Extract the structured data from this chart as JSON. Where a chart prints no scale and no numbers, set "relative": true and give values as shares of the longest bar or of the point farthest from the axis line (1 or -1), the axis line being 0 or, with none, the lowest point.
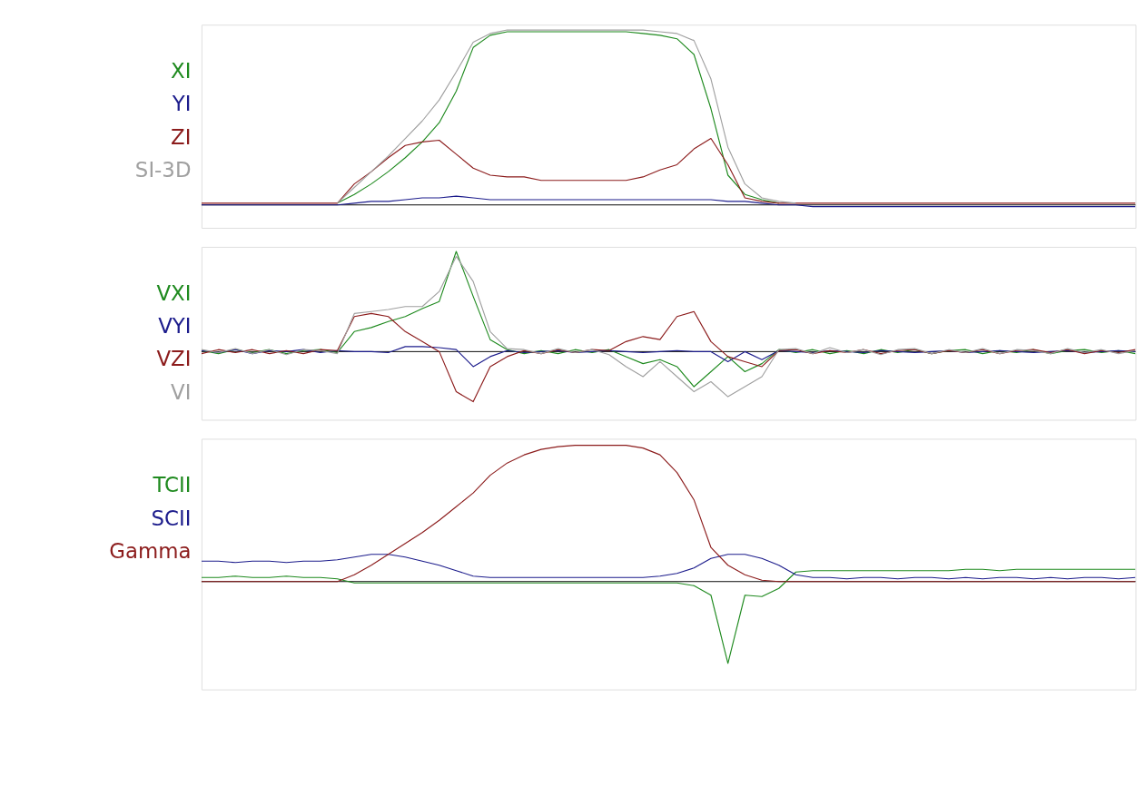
{
  "chart_data": [
    {
      "type": "line",
      "relative": true,
      "legend": "left",
      "grid": false,
      "tick_labels": false,
      "categories": [
        null,
        null,
        null,
        null,
        null,
        null,
        null,
        null,
        null,
        null,
        null,
        null,
        null,
        null,
        null,
        null,
        null,
        null,
        null,
        null,
        null,
        null,
        null,
        null,
        null,
        null,
        null,
        null,
        null,
        null,
        null,
        null,
        null,
        null,
        null,
        null,
        null,
        null,
        null,
        null,
        null,
        null,
        null,
        null,
        null,
        null,
        null,
        null,
        null,
        null,
        null,
        null,
        null,
        null,
        null,
        null
      ],
      "series": [
        {
          "name": "XI",
          "color": "#1f8a1f",
          "values": [
            null,
            null,
            null,
            null,
            null,
            null,
            null,
            null,
            0.01,
            0.06,
            0.12,
            0.19,
            0.27,
            0.36,
            0.47,
            0.65,
            0.9,
            0.97,
            0.99,
            0.99,
            0.99,
            0.99,
            0.99,
            0.99,
            0.99,
            0.99,
            0.98,
            0.97,
            0.95,
            0.86,
            0.55,
            0.17,
            0.06,
            0.03,
            0.01,
            null,
            null,
            null,
            null,
            null,
            null,
            null,
            null,
            null,
            null,
            null,
            null,
            null,
            null,
            null,
            null,
            null,
            null,
            null,
            null,
            null
          ]
        },
        {
          "name": "YI",
          "color": "#1c1c8c",
          "values": [
            0,
            0,
            0,
            0,
            0,
            0,
            0,
            0,
            0,
            0.01,
            0.02,
            0.02,
            0.03,
            0.04,
            0.04,
            0.05,
            0.04,
            0.03,
            0.03,
            0.03,
            0.03,
            0.03,
            0.03,
            0.03,
            0.03,
            0.03,
            0.03,
            0.03,
            0.03,
            0.03,
            0.03,
            0.02,
            0.02,
            0.01,
            0,
            0,
            -0.01,
            -0.01,
            -0.01,
            -0.01,
            -0.01,
            -0.01,
            -0.01,
            -0.01,
            -0.01,
            -0.01,
            -0.01,
            -0.01,
            -0.01,
            -0.01,
            -0.01,
            -0.01,
            -0.01,
            -0.01,
            -0.01,
            -0.01
          ]
        },
        {
          "name": "ZI",
          "color": "#8c1c1c",
          "values": [
            0.01,
            0.01,
            0.01,
            0.01,
            0.01,
            0.01,
            0.01,
            0.01,
            0.01,
            0.12,
            0.19,
            0.27,
            0.34,
            0.36,
            0.37,
            0.29,
            0.21,
            0.17,
            0.16,
            0.16,
            0.14,
            0.14,
            0.14,
            0.14,
            0.14,
            0.14,
            0.16,
            0.2,
            0.23,
            0.32,
            0.38,
            0.23,
            0.04,
            0.02,
            0.01,
            0.01,
            0.01,
            0.01,
            0.01,
            0.01,
            0.01,
            0.01,
            0.01,
            0.01,
            0.01,
            0.01,
            0.01,
            0.01,
            0.01,
            0.01,
            0.01,
            0.01,
            0.01,
            0.01,
            0.01,
            0.01
          ]
        },
        {
          "name": "SI-3D",
          "color": "#a0a0a0",
          "values": [
            null,
            null,
            null,
            null,
            null,
            null,
            null,
            null,
            0.01,
            0.1,
            0.19,
            0.28,
            0.38,
            0.48,
            0.6,
            0.76,
            0.93,
            0.98,
            1,
            1,
            1,
            1,
            1,
            1,
            1,
            1,
            1,
            0.99,
            0.98,
            0.94,
            0.72,
            0.33,
            0.12,
            0.04,
            0.02,
            0.01,
            null,
            null,
            null,
            null,
            null,
            null,
            null,
            null,
            null,
            null,
            null,
            null,
            null,
            null,
            null,
            null,
            null,
            null,
            null,
            null
          ]
        }
      ]
    },
    {
      "type": "line",
      "relative": true,
      "legend": "left",
      "grid": false,
      "tick_labels": false,
      "categories": [
        null,
        null,
        null,
        null,
        null,
        null,
        null,
        null,
        null,
        null,
        null,
        null,
        null,
        null,
        null,
        null,
        null,
        null,
        null,
        null,
        null,
        null,
        null,
        null,
        null,
        null,
        null,
        null,
        null,
        null,
        null,
        null,
        null,
        null,
        null,
        null,
        null,
        null,
        null,
        null,
        null,
        null,
        null,
        null,
        null,
        null,
        null,
        null,
        null,
        null,
        null,
        null,
        null,
        null,
        null,
        null
      ],
      "series": [
        {
          "name": "VXI",
          "color": "#1f8a1f",
          "values": [
            0.01,
            -0.02,
            0.02,
            -0.01,
            0.02,
            -0.02,
            0.01,
            0.02,
            -0.01,
            0.2,
            0.24,
            0.3,
            0.35,
            0.43,
            0.5,
            1,
            0.55,
            0.12,
            0.02,
            -0.02,
            0.01,
            -0.02,
            0.02,
            -0.01,
            0.02,
            -0.05,
            -0.12,
            -0.08,
            -0.15,
            -0.35,
            -0.2,
            -0.05,
            -0.2,
            -0.12,
            0.02,
            -0.01,
            0.02,
            -0.02,
            0.01,
            -0.02,
            0.02,
            -0.01,
            0.02,
            -0.02,
            0.01,
            0.02,
            -0.02,
            0.01,
            -0.01,
            0.02,
            -0.02,
            0.01,
            0.02,
            -0.01,
            0.01,
            -0.02
          ]
        },
        {
          "name": "VYI",
          "color": "#1c1c8c",
          "values": [
            0.01,
            -0.01,
            0.02,
            -0.02,
            0.01,
            0,
            0.02,
            -0.01,
            0.01,
            0,
            0,
            -0.01,
            0.05,
            0.05,
            0.04,
            0.02,
            -0.15,
            -0.05,
            0.01,
            -0.01,
            0,
            0.01,
            -0.01,
            0,
            0.01,
            0,
            -0.01,
            0,
            0.01,
            0,
            0,
            -0.1,
            0,
            -0.08,
            0.01,
            0,
            -0.01,
            0.01,
            0,
            -0.01,
            0.01,
            0,
            -0.01,
            0,
            0.01,
            -0.01,
            0,
            0.01,
            0,
            -0.01,
            0,
            0.01,
            -0.01,
            0,
            0.01,
            0
          ]
        },
        {
          "name": "VZI",
          "color": "#8c1c1c",
          "values": [
            -0.02,
            0.02,
            -0.01,
            0.02,
            -0.02,
            0.01,
            -0.02,
            0.02,
            0.01,
            0.35,
            0.38,
            0.35,
            0.2,
            0.1,
            0,
            -0.4,
            -0.5,
            -0.15,
            -0.05,
            0.01,
            -0.02,
            0.02,
            -0.01,
            0.02,
            0.01,
            0.1,
            0.15,
            0.12,
            0.35,
            0.4,
            0.1,
            -0.05,
            -0.1,
            -0.15,
            0.01,
            0.02,
            -0.02,
            0.01,
            -0.01,
            0.02,
            -0.02,
            0.01,
            0.02,
            -0.02,
            0.01,
            -0.01,
            0.02,
            -0.02,
            0.01,
            0.02,
            -0.01,
            0.02,
            -0.02,
            0.01,
            -0.01,
            0.02
          ]
        },
        {
          "name": "VI",
          "color": "#a0a0a0",
          "values": [
            0.02,
            -0.01,
            0.03,
            -0.02,
            0.02,
            -0.03,
            0.02,
            0.01,
            -0.02,
            0.38,
            0.4,
            0.42,
            0.45,
            0.45,
            0.6,
            0.95,
            0.7,
            0.2,
            0.03,
            0.02,
            -0.02,
            0.03,
            -0.01,
            0.02,
            -0.03,
            -0.15,
            -0.25,
            -0.1,
            -0.25,
            -0.4,
            -0.3,
            -0.45,
            -0.35,
            -0.25,
            0.02,
            0.03,
            -0.02,
            0.04,
            -0.01,
            0.02,
            -0.03,
            0.02,
            0.03,
            -0.02,
            0.02,
            -0.01,
            0.03,
            -0.02,
            0.02,
            0.01,
            -0.02,
            0.03,
            -0.01,
            0.02,
            -0.02,
            0.01
          ]
        }
      ]
    },
    {
      "type": "line",
      "relative": true,
      "legend": "left",
      "grid": false,
      "tick_labels": false,
      "categories": [
        null,
        null,
        null,
        null,
        null,
        null,
        null,
        null,
        null,
        null,
        null,
        null,
        null,
        null,
        null,
        null,
        null,
        null,
        null,
        null,
        null,
        null,
        null,
        null,
        null,
        null,
        null,
        null,
        null,
        null,
        null,
        null,
        null,
        null,
        null,
        null,
        null,
        null,
        null,
        null,
        null,
        null,
        null,
        null,
        null,
        null,
        null,
        null,
        null,
        null,
        null,
        null,
        null,
        null,
        null,
        null
      ],
      "series": [
        {
          "name": "TCII",
          "color": "#1f8a1f",
          "values": [
            0.03,
            0.03,
            0.04,
            0.03,
            0.03,
            0.04,
            0.03,
            0.03,
            0.02,
            -0.01,
            -0.01,
            -0.01,
            -0.01,
            -0.01,
            -0.01,
            -0.01,
            -0.01,
            -0.01,
            -0.01,
            -0.01,
            -0.01,
            -0.01,
            -0.01,
            -0.01,
            -0.01,
            -0.01,
            -0.01,
            -0.01,
            -0.01,
            -0.03,
            -0.1,
            -0.6,
            -0.1,
            -0.11,
            -0.05,
            0.07,
            0.08,
            0.08,
            0.08,
            0.08,
            0.08,
            0.08,
            0.08,
            0.08,
            0.08,
            0.09,
            0.09,
            0.08,
            0.09,
            0.09,
            0.09,
            0.09,
            0.09,
            0.09,
            0.09,
            0.09
          ]
        },
        {
          "name": "SCII",
          "color": "#1c1c8c",
          "values": [
            0.15,
            0.15,
            0.14,
            0.15,
            0.15,
            0.14,
            0.15,
            0.15,
            0.16,
            0.18,
            0.2,
            0.2,
            0.18,
            0.15,
            0.12,
            0.08,
            0.04,
            0.03,
            0.03,
            0.03,
            0.03,
            0.03,
            0.03,
            0.03,
            0.03,
            0.03,
            0.03,
            0.04,
            0.06,
            0.1,
            0.17,
            0.2,
            0.2,
            0.17,
            0.12,
            0.05,
            0.03,
            0.03,
            0.02,
            0.03,
            0.03,
            0.02,
            0.03,
            0.03,
            0.02,
            0.03,
            0.02,
            0.03,
            0.03,
            0.02,
            0.03,
            0.02,
            0.03,
            0.03,
            0.02,
            0.03
          ]
        },
        {
          "name": "Gamma",
          "color": "#8c1c1c",
          "values": [
            0,
            0,
            0,
            0,
            0,
            0,
            0,
            0,
            0,
            0.05,
            0.12,
            0.2,
            0.28,
            0.36,
            0.45,
            0.55,
            0.65,
            0.78,
            0.87,
            0.93,
            0.97,
            0.99,
            1,
            1,
            1,
            1,
            0.98,
            0.93,
            0.8,
            0.6,
            0.25,
            0.12,
            0.05,
            0.01,
            0,
            0,
            0,
            0,
            0,
            0,
            0,
            0,
            0,
            0,
            0,
            0,
            0,
            0,
            0,
            0,
            0,
            0,
            0,
            0,
            0,
            0
          ]
        }
      ]
    }
  ]
}
